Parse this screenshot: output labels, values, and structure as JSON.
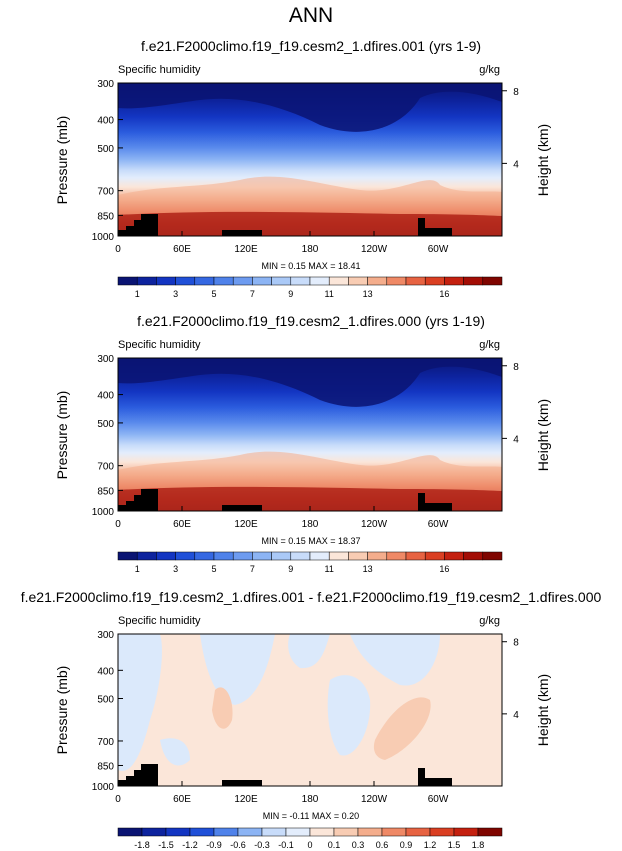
{
  "page_title": "ANN",
  "chart_data": [
    {
      "type": "heatmap",
      "title": "f.e21.F2000climo.f19_f19.cesm2_1.dfires.001 (yrs 1-9)",
      "variable_label": "Specific humidity",
      "units": "g/kg",
      "ylabel": "Pressure (mb)",
      "ylabel_right": "Height (km)",
      "xticks": [
        "0",
        "60E",
        "120E",
        "180",
        "120W",
        "60W"
      ],
      "yticks": [
        "300",
        "400",
        "500",
        "700",
        "850",
        "1000"
      ],
      "right_ticks": [
        "8",
        "4"
      ],
      "stats": "MIN =  0.15  MAX = 18.41",
      "colorbar_labels": [
        "1",
        "3",
        "5",
        "7",
        "9",
        "11",
        "13",
        "16"
      ],
      "colorbar_colors": [
        "#0a1473",
        "#0d239e",
        "#1335c2",
        "#2050d8",
        "#3568e2",
        "#4f82ea",
        "#6d9bf0",
        "#8cb4f4",
        "#aac9f7",
        "#c8dcfa",
        "#e3edfc",
        "#fbe6d9",
        "#f8ccb3",
        "#f4ad8c",
        "#ef8966",
        "#e76342",
        "#da3f22",
        "#c4200f",
        "#a30d05",
        "#7f0500"
      ],
      "min": 0.15,
      "max": 18.41
    },
    {
      "type": "heatmap",
      "title": "f.e21.F2000climo.f19_f19.cesm2_1.dfires.000 (yrs 1-19)",
      "variable_label": "Specific humidity",
      "units": "g/kg",
      "ylabel": "Pressure (mb)",
      "ylabel_right": "Height (km)",
      "xticks": [
        "0",
        "60E",
        "120E",
        "180",
        "120W",
        "60W"
      ],
      "yticks": [
        "300",
        "400",
        "500",
        "700",
        "850",
        "1000"
      ],
      "right_ticks": [
        "8",
        "4"
      ],
      "stats": "MIN =  0.15  MAX = 18.37",
      "colorbar_labels": [
        "1",
        "3",
        "5",
        "7",
        "9",
        "11",
        "13",
        "16"
      ],
      "colorbar_colors": [
        "#0a1473",
        "#0d239e",
        "#1335c2",
        "#2050d8",
        "#3568e2",
        "#4f82ea",
        "#6d9bf0",
        "#8cb4f4",
        "#aac9f7",
        "#c8dcfa",
        "#e3edfc",
        "#fbe6d9",
        "#f8ccb3",
        "#f4ad8c",
        "#ef8966",
        "#e76342",
        "#da3f22",
        "#c4200f",
        "#a30d05",
        "#7f0500"
      ],
      "min": 0.15,
      "max": 18.37
    },
    {
      "type": "heatmap",
      "title": "f.e21.F2000climo.f19_f19.cesm2_1.dfires.001 - f.e21.F2000climo.f19_f19.cesm2_1.dfires.000",
      "variable_label": "Specific humidity",
      "units": "g/kg",
      "ylabel": "Pressure (mb)",
      "ylabel_right": "Height (km)",
      "xticks": [
        "0",
        "60E",
        "120E",
        "180",
        "120W",
        "60W"
      ],
      "yticks": [
        "300",
        "400",
        "500",
        "700",
        "850",
        "1000"
      ],
      "right_ticks": [
        "8",
        "4"
      ],
      "stats": "MIN = -0.11  MAX =  0.20",
      "colorbar_labels": [
        "-1.8",
        "-1.5",
        "-1.2",
        "-0.9",
        "-0.6",
        "-0.3",
        "-0.1",
        "0",
        "0.1",
        "0.3",
        "0.6",
        "0.9",
        "1.2",
        "1.5",
        "1.8"
      ],
      "colorbar_colors": [
        "#0a1473",
        "#0d239e",
        "#1335c2",
        "#2050d8",
        "#4f82ea",
        "#8cb4f4",
        "#c8dcfa",
        "#e3edfc",
        "#fbe6d9",
        "#f8ccb3",
        "#f4ad8c",
        "#ef8966",
        "#e76342",
        "#da3f22",
        "#c4200f",
        "#7f0500"
      ],
      "min": -0.11,
      "max": 0.2,
      "field_base_color": "#fbe6d9",
      "field_negative_color": "#dbe9fb",
      "field_positive_color": "#f8ccb3"
    }
  ]
}
